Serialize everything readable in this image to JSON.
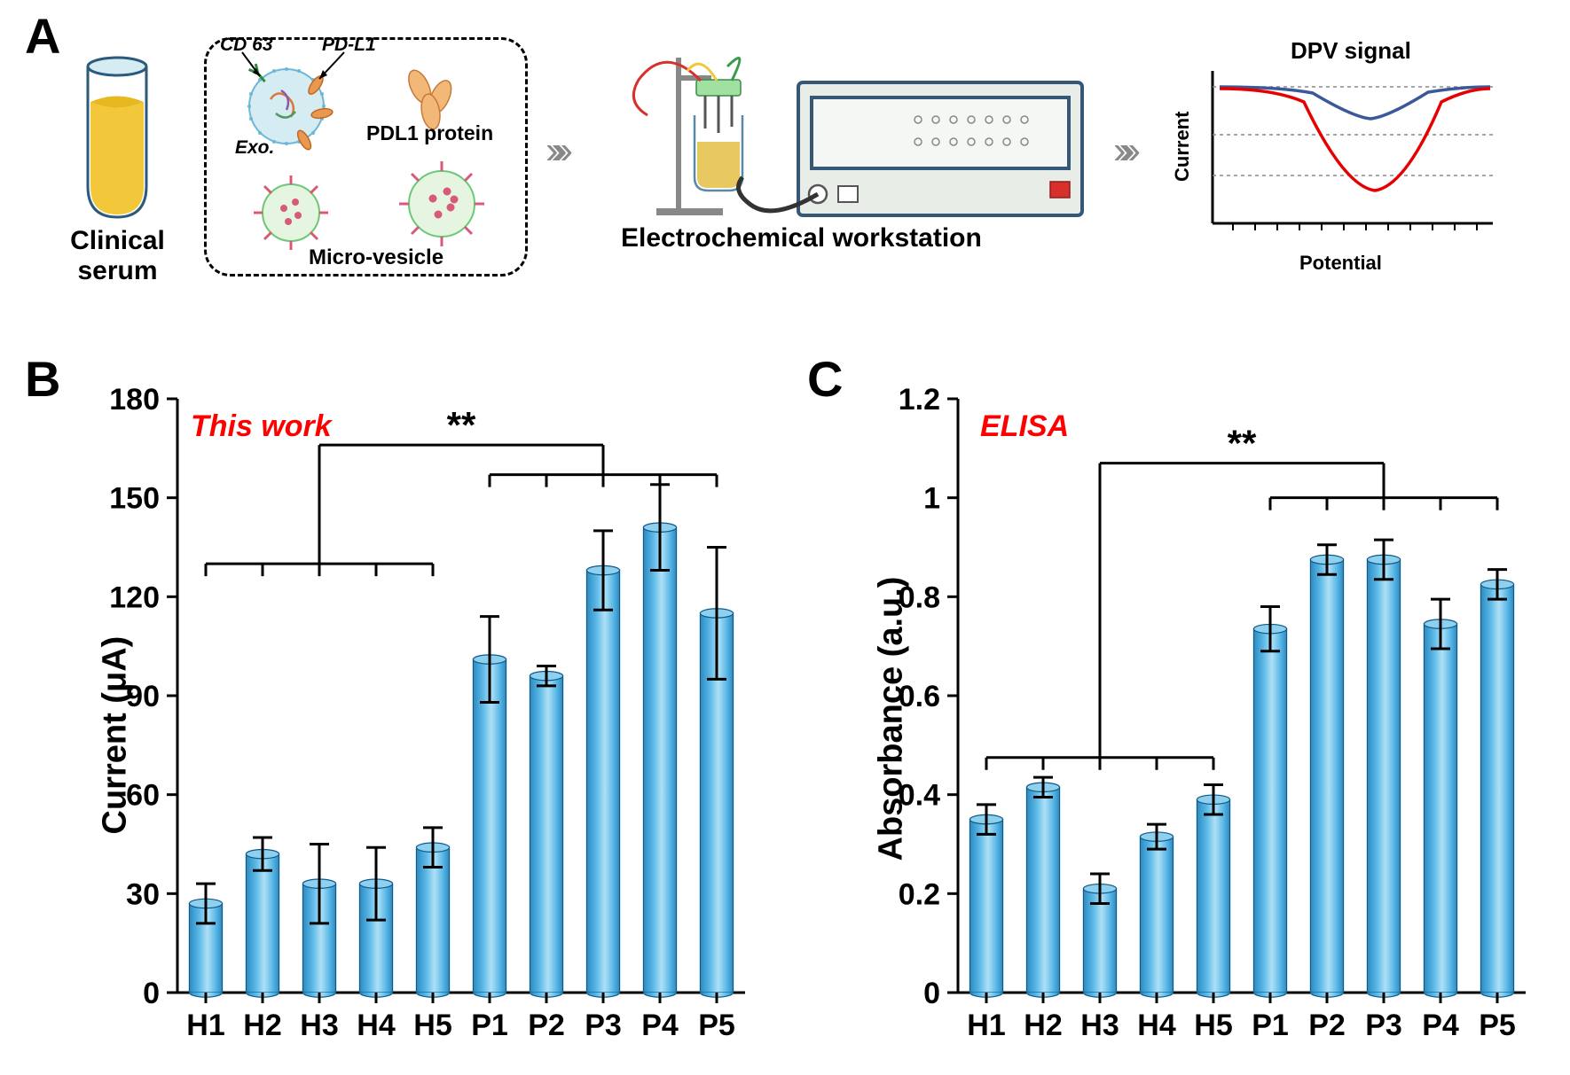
{
  "panelA": {
    "label": "A",
    "serum_label": "Clinical serum",
    "bubble": {
      "cd63": "CD 63",
      "pdl1": "PD-L1",
      "exo": "Exo.",
      "pdl1_protein": "PDL1 protein",
      "micro_vesicle": "Micro-vesicle"
    },
    "workstation_label": "Electrochemical workstation",
    "dpv": {
      "title": "DPV signal",
      "ylabel": "Current",
      "xlabel": "Potential",
      "curve_colors": [
        "#3b5998",
        "#e60000"
      ]
    }
  },
  "panelB": {
    "label": "B",
    "annotation": "This work",
    "ylabel": "Current (μA)",
    "ylim": [
      0,
      180
    ],
    "ytick_step": 30,
    "yticks": [
      0,
      30,
      60,
      90,
      120,
      150,
      180
    ],
    "categories": [
      "H1",
      "H2",
      "H3",
      "H4",
      "H5",
      "P1",
      "P2",
      "P3",
      "P4",
      "P5"
    ],
    "values": [
      27,
      42,
      33,
      33,
      44,
      101,
      96,
      128,
      141,
      115
    ],
    "errors": [
      6,
      5,
      12,
      11,
      6,
      13,
      3,
      12,
      13,
      20
    ],
    "bar_color": "#5bb9e8",
    "bar_stroke": "#0d5a8a",
    "significance": "**",
    "h_bracket_y": 130,
    "p_bracket_y": 157,
    "sig_y": 166
  },
  "panelC": {
    "label": "C",
    "annotation": "ELISA",
    "ylabel": "Absorbance (a.u.)",
    "ylim": [
      0,
      1.2
    ],
    "ytick_step": 0.2,
    "yticks": [
      0,
      0.2,
      0.4,
      0.6,
      0.8,
      1.0,
      1.2
    ],
    "categories": [
      "H1",
      "H2",
      "H3",
      "H4",
      "H5",
      "P1",
      "P2",
      "P3",
      "P4",
      "P5"
    ],
    "values": [
      0.35,
      0.415,
      0.21,
      0.315,
      0.39,
      0.735,
      0.875,
      0.875,
      0.745,
      0.825
    ],
    "errors": [
      0.03,
      0.02,
      0.03,
      0.025,
      0.03,
      0.045,
      0.03,
      0.04,
      0.05,
      0.03
    ],
    "bar_color": "#5bb9e8",
    "bar_stroke": "#0d5a8a",
    "significance": "**",
    "h_bracket_y": 0.475,
    "p_bracket_y": 1.0,
    "sig_y": 1.07
  },
  "styling": {
    "axis_stroke_width": 3,
    "error_stroke_width": 3,
    "bar_width_ratio": 0.58,
    "bracket_stroke_width": 3
  }
}
